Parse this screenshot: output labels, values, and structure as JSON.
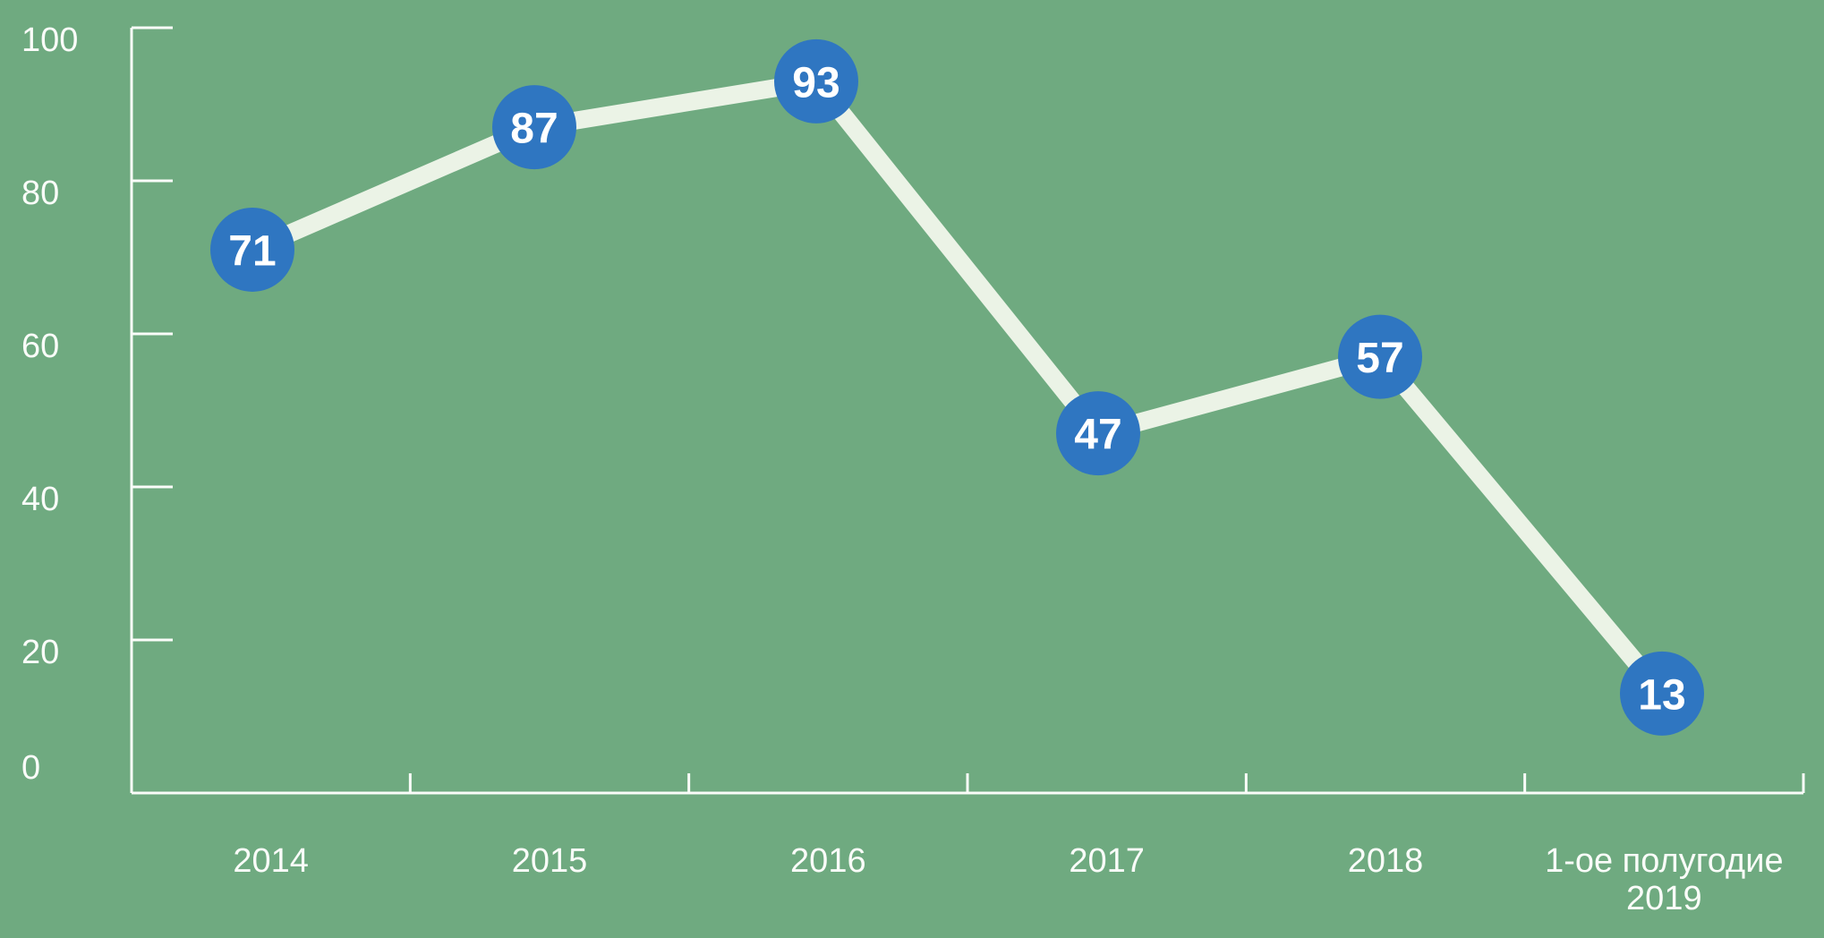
{
  "chart_data": {
    "type": "line",
    "title": "",
    "xlabel": "",
    "ylabel": "",
    "categories": [
      "2014",
      "2015",
      "2016",
      "2017",
      "2018",
      "1-ое полугодие 2019"
    ],
    "values": [
      71,
      87,
      93,
      47,
      57,
      13
    ],
    "data_labels_visible": true,
    "y_ticks": [
      0,
      20,
      40,
      60,
      80,
      100
    ],
    "ylim": [
      0,
      100
    ],
    "grid": false,
    "legend": false,
    "marker_shape": "circle",
    "colors": {
      "background": "#6FAA80",
      "line": "#EBF3E6",
      "marker_fill": "#2F76C1",
      "marker_text": "#FFFFFF",
      "axis": "#FAFCF9",
      "tick_label": "#FAFCF9"
    }
  }
}
